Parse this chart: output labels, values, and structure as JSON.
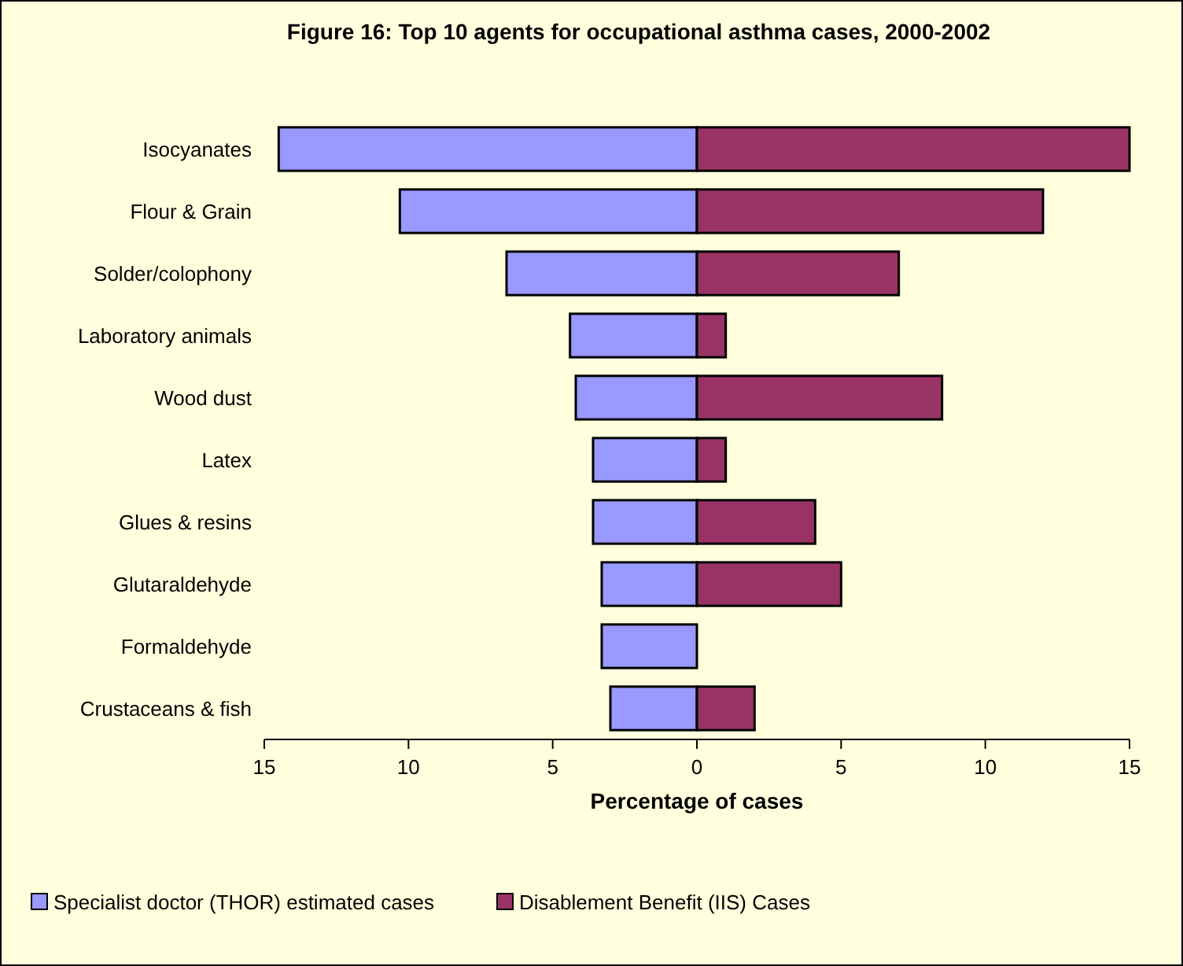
{
  "chart_data": {
    "type": "bar",
    "orientation": "horizontal",
    "stacked": true,
    "title": "Figure 16: Top 10 agents for occupational asthma cases, 2000-2002",
    "xlabel": "Percentage of cases",
    "categories": [
      "Isocyanates",
      "Flour & Grain",
      "Solder/colophony",
      "Laboratory animals",
      "Wood dust",
      "Latex",
      "Glues & resins",
      "Glutaraldehyde",
      "Formaldehyde",
      "Crustaceans & fish"
    ],
    "series": [
      {
        "name": "Specialist doctor (THOR) estimated cases",
        "color": "#9999ff",
        "values": [
          -14.5,
          -10.3,
          -6.6,
          -4.4,
          -4.2,
          -3.6,
          -3.6,
          -3.3,
          -3.3,
          -3
        ]
      },
      {
        "name": "Disablement Benefit (IIS) Cases",
        "color": "#993366",
        "values": [
          15,
          12,
          7,
          1,
          8.5,
          1,
          4.1,
          5,
          null,
          2
        ]
      }
    ],
    "xlim": [
      -15,
      15
    ],
    "xticks": [
      {
        "value": -15,
        "label": "15"
      },
      {
        "value": -10,
        "label": "10"
      },
      {
        "value": -5,
        "label": "5"
      },
      0,
      5,
      10,
      15
    ],
    "grid": false,
    "legend": "bottom"
  }
}
